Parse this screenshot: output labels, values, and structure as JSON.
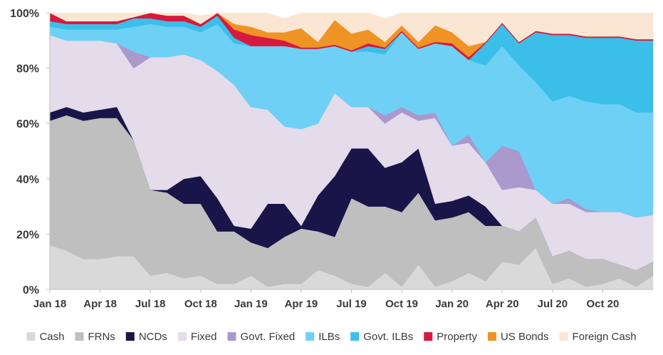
{
  "chart_data": {
    "type": "area",
    "stacked": true,
    "ylim": [
      0,
      100
    ],
    "y_ticks": [
      "0%",
      "20%",
      "40%",
      "60%",
      "80%",
      "100%"
    ],
    "x_ticks": [
      {
        "label": "Jan 18",
        "index": 0
      },
      {
        "label": "Apr 18",
        "index": 3
      },
      {
        "label": "Jul 18",
        "index": 6
      },
      {
        "label": "Oct 18",
        "index": 9
      },
      {
        "label": "Jan 19",
        "index": 12
      },
      {
        "label": "Apr 19",
        "index": 15
      },
      {
        "label": "Jul 19",
        "index": 18
      },
      {
        "label": "Oct 19",
        "index": 21
      },
      {
        "label": "Jan 20",
        "index": 24
      },
      {
        "label": "Apr 20",
        "index": 27
      },
      {
        "label": "Jul 20",
        "index": 30
      },
      {
        "label": "Oct 20",
        "index": 33
      }
    ],
    "grid": false,
    "legend_position": "bottom",
    "series": [
      {
        "name": "Cash",
        "color": "#d9d9d9",
        "values": [
          16,
          14,
          11,
          11,
          12,
          12,
          5,
          6,
          4,
          5,
          2,
          2,
          5,
          1,
          2,
          2,
          7,
          5,
          2,
          1,
          6,
          1,
          9,
          1,
          3,
          6,
          3,
          10,
          9,
          15,
          2,
          4,
          1,
          2,
          4,
          1,
          5
        ]
      },
      {
        "name": "FRNs",
        "color": "#bfbfbf",
        "values": [
          45,
          49,
          50,
          51,
          50,
          42,
          31,
          29,
          27,
          26,
          19,
          19,
          12,
          14,
          17,
          20,
          14,
          14,
          31,
          29,
          24,
          27,
          26,
          24,
          23,
          22,
          20,
          13,
          12,
          11,
          10,
          10,
          10,
          9,
          5,
          6,
          5
        ]
      },
      {
        "name": "NCDs",
        "color": "#1a1548",
        "values": [
          3,
          3,
          3,
          3,
          4,
          0,
          0,
          1,
          9,
          10,
          12,
          2,
          5,
          16,
          12,
          1,
          13,
          22,
          18,
          21,
          14,
          18,
          16,
          6,
          6,
          6,
          7,
          0,
          0,
          0,
          0,
          0,
          0,
          0,
          0,
          0,
          0
        ]
      },
      {
        "name": "Fixed",
        "color": "#e4dbeb",
        "values": [
          28,
          24,
          26,
          25,
          23,
          26,
          48,
          48,
          45,
          42,
          46,
          51,
          44,
          34,
          28,
          35,
          26,
          30,
          15,
          15,
          16,
          18,
          10,
          31,
          20,
          19,
          16,
          13,
          16,
          10,
          19,
          17,
          17,
          17,
          19,
          19,
          17
        ]
      },
      {
        "name": "Govt. Fixed",
        "color": "#a999cc",
        "values": [
          0,
          0,
          0,
          0,
          0,
          6,
          0,
          0,
          0,
          0,
          0,
          0,
          0,
          0,
          0,
          0,
          0,
          0,
          0,
          0,
          3,
          2,
          2,
          2,
          0,
          3,
          0,
          16,
          13,
          0,
          0,
          2,
          1,
          0,
          0,
          0,
          0
        ]
      },
      {
        "name": "ILBs",
        "color": "#6fd0f5",
        "values": [
          3,
          4,
          4,
          4,
          5,
          9,
          12,
          11,
          10,
          10,
          17,
          15,
          22,
          23,
          29,
          29,
          27,
          17,
          20,
          20,
          22,
          27,
          24,
          25,
          36,
          27,
          35,
          36,
          31,
          39,
          37,
          37,
          39,
          39,
          39,
          38,
          37
        ]
      },
      {
        "name": "Govt. ILBs",
        "color": "#3bbfe9",
        "values": [
          2,
          2,
          2,
          2,
          2,
          3,
          2,
          2,
          2,
          2,
          3,
          2,
          0,
          0,
          0,
          0,
          0,
          0,
          0,
          2,
          2,
          0,
          0,
          0,
          0,
          0,
          8,
          8,
          8,
          18,
          24,
          22,
          23,
          24,
          24,
          26,
          26
        ]
      },
      {
        "name": "Property",
        "color": "#d7193f",
        "values": [
          3,
          1,
          1,
          1,
          1,
          0.5,
          2,
          2,
          2,
          1,
          2,
          3,
          4,
          3,
          2,
          0.5,
          0.5,
          0.5,
          0.5,
          1,
          0.5,
          0.5,
          0.5,
          0.5,
          1,
          1,
          0.5,
          0.5,
          0.5,
          0.5,
          0.5,
          0.5,
          0.5,
          0.5,
          0.5,
          0.5,
          0.5
        ]
      },
      {
        "name": "US Bonds",
        "color": "#ef9325",
        "values": [
          0,
          0,
          0,
          0,
          0,
          0,
          0,
          0,
          0,
          0,
          1,
          2,
          3,
          2,
          3,
          7,
          2,
          9,
          6,
          5,
          2,
          2,
          2,
          6,
          4,
          4,
          0,
          0,
          0,
          0,
          0,
          0,
          0,
          0,
          0,
          0,
          0
        ]
      },
      {
        "name": "Foreign Cash",
        "color": "#fbe6d4",
        "values": [
          0,
          3,
          3,
          3,
          3,
          1.5,
          0,
          1,
          1,
          3,
          4,
          4,
          5,
          7,
          5,
          5.5,
          10.5,
          2.5,
          7.5,
          6,
          8.5,
          4.5,
          10.5,
          4.5,
          7,
          12,
          10.5,
          3.5,
          10.5,
          6.5,
          7.5,
          7.5,
          8.5,
          8.5,
          8.5,
          9.5,
          9.5
        ]
      }
    ]
  }
}
